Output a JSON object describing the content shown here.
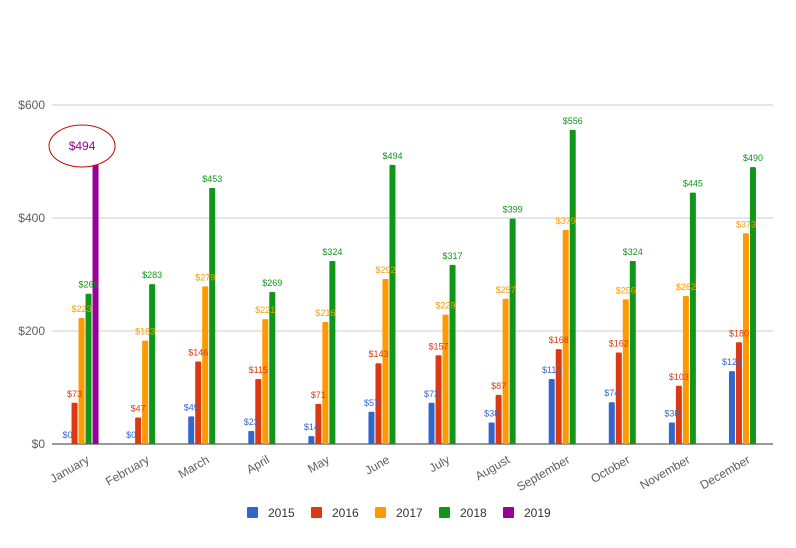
{
  "chart_data": {
    "type": "bar",
    "categories": [
      "January",
      "February",
      "March",
      "April",
      "May",
      "June",
      "July",
      "August",
      "September",
      "October",
      "November",
      "December"
    ],
    "series": [
      {
        "name": "2015",
        "color": "#3366cc",
        "values": [
          0,
          0,
          49,
          23,
          14,
          57,
          73,
          38,
          115,
          74,
          38,
          129
        ],
        "labels": [
          "$0",
          "$0",
          "$49",
          "$23",
          "$14",
          "$57",
          "$73",
          "$38",
          "$115",
          "$74",
          "$38",
          "$129"
        ]
      },
      {
        "name": "2016",
        "color": "#dc3912",
        "values": [
          73,
          47,
          146,
          115,
          71,
          143,
          157,
          87,
          168,
          162,
          103,
          180
        ],
        "labels": [
          "$73",
          "$47",
          "$146",
          "$115",
          "$71",
          "$143",
          "$157",
          "$87",
          "$168",
          "$162",
          "$103",
          "$180"
        ]
      },
      {
        "name": "2017",
        "color": "#ff9900",
        "values": [
          223,
          183,
          279,
          221,
          216,
          292,
          229,
          257,
          379,
          256,
          262,
          373
        ],
        "labels": [
          "$223",
          "$183",
          "$279",
          "$221",
          "$216",
          "$292",
          "$229",
          "$257",
          "$379",
          "$256",
          "$262",
          "$373"
        ]
      },
      {
        "name": "2018",
        "color": "#109618",
        "values": [
          266,
          283,
          453,
          269,
          324,
          494,
          317,
          399,
          556,
          324,
          445,
          490
        ],
        "labels": [
          "$266",
          "$283",
          "$453",
          "$269",
          "$324",
          "$494",
          "$317",
          "$399",
          "$556",
          "$324",
          "$445",
          "$490"
        ]
      },
      {
        "name": "2019",
        "color": "#990099",
        "values": [
          494,
          null,
          null,
          null,
          null,
          null,
          null,
          null,
          null,
          null,
          null,
          null
        ],
        "labels": [
          "$494",
          "",
          "",
          "",
          "",
          "",
          "",
          "",
          "",
          "",
          "",
          ""
        ]
      }
    ],
    "ylim": [
      0,
      600
    ],
    "yticks": [
      0,
      200,
      400,
      600
    ],
    "ytick_labels": [
      "$0",
      "$200",
      "$400",
      "$600"
    ],
    "grid": true,
    "legend_position": "bottom",
    "annotation": {
      "text": "$494",
      "category": "January",
      "series": "2019",
      "shape": "ellipse",
      "color": "#cc0000"
    }
  }
}
